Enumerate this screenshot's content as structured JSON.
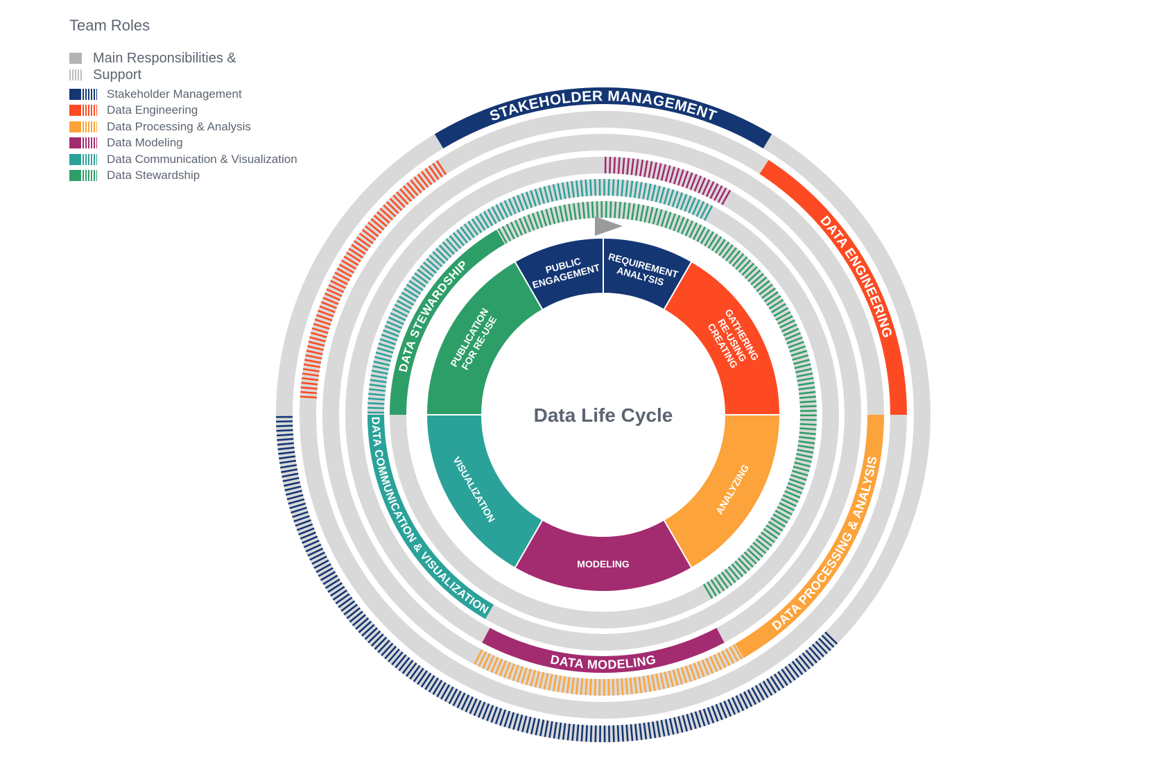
{
  "legend": {
    "title": "Team Roles",
    "main_label": "Main Responsibilities &",
    "support_label": "Support",
    "roles": [
      {
        "name": "Stakeholder Management",
        "color": "#143673"
      },
      {
        "name": "Data Engineering",
        "color": "#fd4a22"
      },
      {
        "name": "Data Processing & Analysis",
        "color": "#fca33b"
      },
      {
        "name": "Data Modeling",
        "color": "#a32b70"
      },
      {
        "name": "Data Communication & Visualization",
        "color": "#2aa29a"
      },
      {
        "name": "Data Stewardship",
        "color": "#2e9e68"
      }
    ]
  },
  "center_title": "Data Life Cycle",
  "phases": [
    {
      "lines": [
        "PUBLIC",
        "ENGAGEMENT"
      ],
      "color": "#143673"
    },
    {
      "lines": [
        "REQUIREMENT",
        "ANALYSIS"
      ],
      "color": "#143673"
    },
    {
      "lines": [
        "GATHERING",
        "RE-USING",
        "CREATING"
      ],
      "color": "#fd4a22"
    },
    {
      "lines": [
        "ANALYZING"
      ],
      "color": "#fca33b"
    },
    {
      "lines": [
        "MODELING"
      ],
      "color": "#a32b70"
    },
    {
      "lines": [
        "VISUALIZATION"
      ],
      "color": "#2aa29a"
    },
    {
      "lines": [
        "PUBLICATION",
        "FOR RE-USE"
      ],
      "color": "#2e9e68"
    }
  ],
  "role_labels": {
    "stakeholder": "STAKEHOLDER MANAGEMENT",
    "engineering": "DATA ENGINEERING",
    "processing": "DATA PROCESSING & ANALYSIS",
    "modeling": "DATA MODELING",
    "communication": "DATA COMMUNICATION & VISUALIZATION",
    "stewardship": "DATA STEWARDSHIP"
  },
  "colors": {
    "ring_background": "#d9d9d9",
    "start_marker": "#9a9a9a",
    "center_fill": "#ffffff"
  }
}
